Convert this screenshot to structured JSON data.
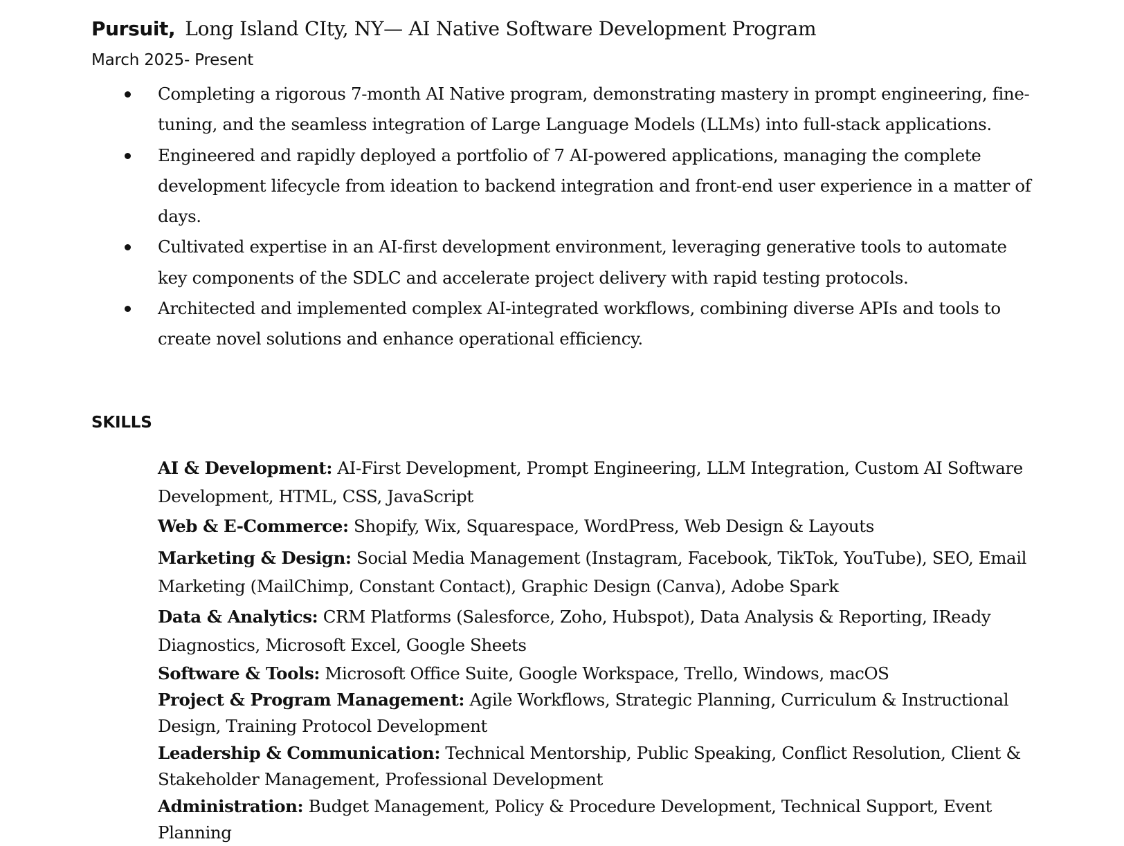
{
  "job": {
    "company": "Pursuit,",
    "title_rest": "Long Island CIty, NY— AI Native Software Development Program",
    "dates": "March 2025- Present",
    "bullets": [
      "Completing a rigorous 7-month AI Native program, demonstrating mastery in prompt engineering, fine-tuning, and the seamless integration of Large Language Models (LLMs) into full-stack applications.",
      "Engineered and rapidly deployed a portfolio of 7 AI-powered applications, managing the complete development lifecycle from ideation to backend integration and front-end user experience in a matter of days.",
      "Cultivated expertise in an AI-first development environment, leveraging generative tools to automate key components of the SDLC and accelerate project delivery with rapid testing protocols.",
      "Architected and implemented complex AI-integrated workflows, combining diverse APIs and tools to create novel solutions and enhance operational efficiency."
    ]
  },
  "skills": {
    "heading": "SKILLS",
    "items": [
      {
        "category": "AI & Development:",
        "text": "AI-First Development, Prompt Engineering, LLM Integration, Custom AI Software Development, HTML, CSS, JavaScript"
      },
      {
        "category": "Web & E-Commerce:",
        "text": "Shopify, Wix, Squarespace, WordPress, Web Design & Layouts"
      },
      {
        "category": "Marketing & Design:",
        "text": "Social Media Management (Instagram, Facebook, TikTok, YouTube), SEO, Email Marketing (MailChimp, Constant Contact), Graphic Design (Canva), Adobe Spark"
      },
      {
        "category": "Data & Analytics:",
        "text": "CRM Platforms (Salesforce, Zoho, Hubspot), Data Analysis & Reporting, IReady Diagnostics, Microsoft Excel, Google Sheets"
      },
      {
        "category": "Software & Tools:",
        "text": "Microsoft Office Suite, Google Workspace, Trello, Windows, macOS"
      },
      {
        "category": "Project & Program Management:",
        "text": "Agile Workflows, Strategic Planning, Curriculum & Instructional Design, Training Protocol Development"
      },
      {
        "category": "Leadership & Communication:",
        "text": "Technical Mentorship, Public Speaking, Conflict Resolution, Client & Stakeholder Management, Professional Development"
      },
      {
        "category": "Administration:",
        "text": "Budget Management, Policy & Procedure Development, Technical Support, Event Planning"
      }
    ]
  }
}
